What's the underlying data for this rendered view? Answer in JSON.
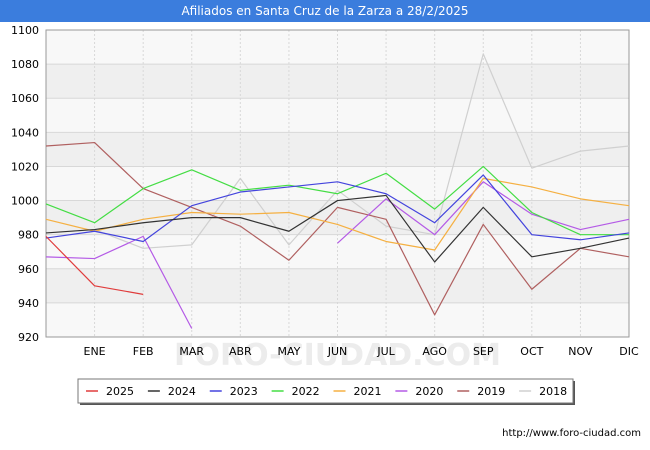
{
  "header": {
    "title": "Afiliados en Santa Cruz de la Zarza a 28/2/2025"
  },
  "footer": {
    "source": "http://www.foro-ciudad.com"
  },
  "watermark": "FORO-CIUDAD.COM",
  "chart_data": {
    "type": "line",
    "title": "Afiliados en Santa Cruz de la Zarza a 28/2/2025",
    "xlabel": "",
    "ylabel": "",
    "categories": [
      "",
      "ENE",
      "FEB",
      "MAR",
      "ABR",
      "MAY",
      "JUN",
      "JUL",
      "AGO",
      "SEP",
      "OCT",
      "NOV",
      "DIC"
    ],
    "ylim": [
      920,
      1100
    ],
    "yticks": [
      920,
      940,
      960,
      980,
      1000,
      1020,
      1040,
      1060,
      1080,
      1100
    ],
    "grid": true,
    "legend_position": "bottom",
    "series": [
      {
        "name": "2025",
        "color": "#e03c3c",
        "values": [
          979,
          950,
          945,
          null,
          null,
          null,
          null,
          null,
          null,
          null,
          null,
          null,
          null
        ]
      },
      {
        "name": "2024",
        "color": "#333333",
        "values": [
          981,
          983,
          987,
          990,
          990,
          982,
          1000,
          1003,
          964,
          996,
          967,
          972,
          978
        ]
      },
      {
        "name": "2023",
        "color": "#4444dd",
        "values": [
          978,
          982,
          976,
          997,
          1005,
          1008,
          1011,
          1004,
          987,
          1015,
          980,
          977,
          981
        ]
      },
      {
        "name": "2022",
        "color": "#44dd44",
        "values": [
          998,
          987,
          1007,
          1018,
          1006,
          1009,
          1004,
          1016,
          995,
          1020,
          993,
          980,
          980
        ]
      },
      {
        "name": "2021",
        "color": "#f5b042",
        "values": [
          989,
          982,
          989,
          993,
          992,
          993,
          986,
          976,
          971,
          1013,
          1008,
          1001,
          997
        ]
      },
      {
        "name": "2020",
        "color": "#b45ae6",
        "values": [
          967,
          966,
          979,
          925,
          null,
          null,
          975,
          1001,
          980,
          1011,
          992,
          983,
          989
        ]
      },
      {
        "name": "2019",
        "color": "#b06060",
        "values": [
          1032,
          1034,
          1007,
          996,
          985,
          965,
          996,
          989,
          933,
          986,
          948,
          972,
          967
        ]
      },
      {
        "name": "2018",
        "color": "#d0d0d0",
        "values": [
          null,
          983,
          972,
          974,
          1013,
          974,
          1006,
          985,
          980,
          1086,
          1019,
          1029,
          1032
        ]
      }
    ]
  }
}
